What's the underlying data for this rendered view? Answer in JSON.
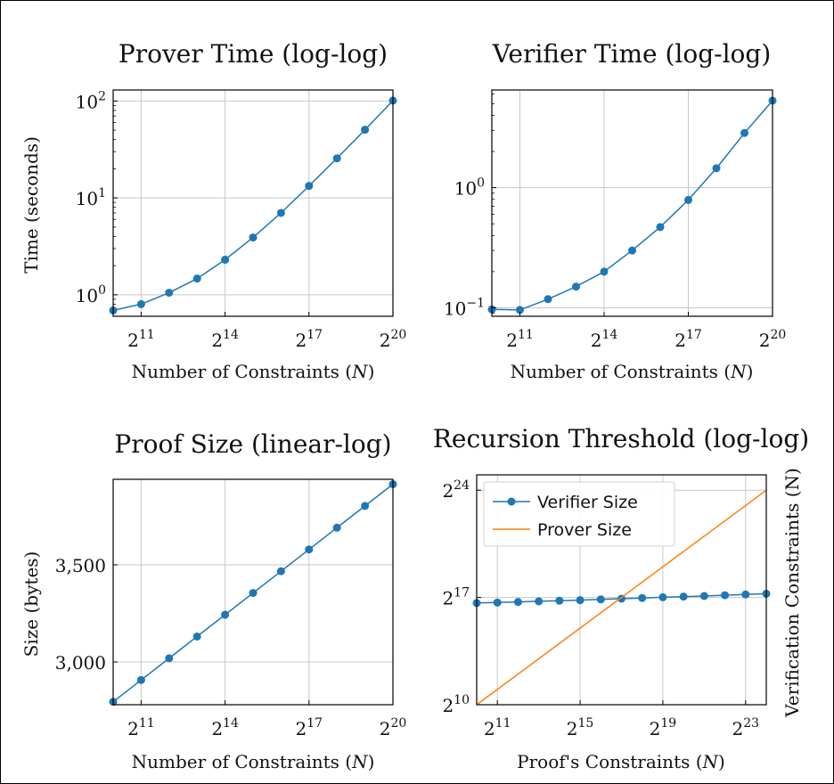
{
  "colors": {
    "series_blue": "#1f77b4",
    "series_orange": "#ff7f0e",
    "grid": "#c8c8c8",
    "frame": "#000000"
  },
  "chart_data": [
    {
      "id": "prover-time",
      "type": "line",
      "title": "Prover Time (log-log)",
      "xlabel": "Number of Constraints (N)",
      "ylabel": "Time (seconds)",
      "xscale": "log2",
      "yscale": "log10",
      "xlim": [
        1024,
        1048576
      ],
      "ylim": [
        0.6,
        130
      ],
      "xticks": [
        2048,
        16384,
        131072,
        1048576
      ],
      "xtick_labels": [
        "2^11",
        "2^14",
        "2^17",
        "2^20"
      ],
      "yticks": [
        1,
        10,
        100
      ],
      "ytick_labels": [
        "10^0",
        "10^1",
        "10^2"
      ],
      "grid": true,
      "series": [
        {
          "color": "#1f77b4",
          "markers": true,
          "x": [
            1024,
            2048,
            4096,
            8192,
            16384,
            32768,
            65536,
            131072,
            262144,
            524288,
            1048576
          ],
          "y": [
            0.69,
            0.8,
            1.05,
            1.47,
            2.3,
            3.9,
            7.0,
            13.3,
            25.6,
            50.5,
            101
          ]
        }
      ]
    },
    {
      "id": "verifier-time",
      "type": "line",
      "title": "Verifier Time (log-log)",
      "xlabel": "Number of Constraints (N)",
      "ylabel": "",
      "xscale": "log2",
      "yscale": "log10",
      "xlim": [
        1024,
        1048576
      ],
      "ylim": [
        0.085,
        6.5
      ],
      "xticks": [
        2048,
        16384,
        131072,
        1048576
      ],
      "xtick_labels": [
        "2^11",
        "2^14",
        "2^17",
        "2^20"
      ],
      "yticks": [
        0.1,
        1
      ],
      "ytick_labels": [
        "10^-1",
        "10^0"
      ],
      "grid": true,
      "series": [
        {
          "color": "#1f77b4",
          "markers": true,
          "x": [
            1024,
            2048,
            4096,
            8192,
            16384,
            32768,
            65536,
            131072,
            262144,
            524288,
            1048576
          ],
          "y": [
            0.097,
            0.096,
            0.118,
            0.15,
            0.2,
            0.3,
            0.47,
            0.79,
            1.45,
            2.85,
            5.3
          ]
        }
      ]
    },
    {
      "id": "proof-size",
      "type": "line",
      "title": "Proof Size (linear-log)",
      "xlabel": "Number of Constraints (N)",
      "ylabel": "Size (bytes)",
      "xscale": "log2",
      "yscale": "linear",
      "xlim": [
        1024,
        1048576
      ],
      "ylim": [
        2780,
        3940
      ],
      "xticks": [
        2048,
        16384,
        131072,
        1048576
      ],
      "xtick_labels": [
        "2^11",
        "2^14",
        "2^17",
        "2^20"
      ],
      "yticks": [
        3000,
        3500
      ],
      "ytick_labels": [
        "3,000",
        "3,500"
      ],
      "grid": true,
      "series": [
        {
          "color": "#1f77b4",
          "markers": true,
          "x": [
            1024,
            2048,
            4096,
            8192,
            16384,
            32768,
            65536,
            131072,
            262144,
            524288,
            1048576
          ],
          "y": [
            2795,
            2907,
            3019,
            3131,
            3243,
            3355,
            3467,
            3579,
            3691,
            3803,
            3915
          ]
        }
      ]
    },
    {
      "id": "recursion-threshold",
      "type": "line",
      "title": "Recursion Threshold (log-log)",
      "xlabel": "Proof's Constraints (N)",
      "ylabel": "Verification Constraints (N)",
      "xscale": "log2",
      "yscale": "log2",
      "xlim": [
        1024,
        16777216
      ],
      "ylim": [
        1024,
        33554432
      ],
      "xticks": [
        2048,
        32768,
        524288,
        8388608
      ],
      "xtick_labels": [
        "2^11",
        "2^15",
        "2^19",
        "2^23"
      ],
      "yticks": [
        1024,
        131072,
        16777216
      ],
      "ytick_labels": [
        "2^10",
        "2^17",
        "2^24"
      ],
      "grid": true,
      "legend": "top-left",
      "series": [
        {
          "name": "Verifier Size",
          "color": "#1f77b4",
          "markers": true,
          "x": [
            1024,
            2048,
            4096,
            8192,
            16384,
            32768,
            65536,
            131072,
            262144,
            524288,
            1048576,
            2097152,
            4194304,
            8388608,
            16777216
          ],
          "y": [
            102000,
            104000,
            107000,
            110000,
            113000,
            116000,
            120000,
            124000,
            128000,
            132000,
            136000,
            140000,
            145000,
            150000,
            155000
          ]
        },
        {
          "name": "Prover Size",
          "color": "#ff7f0e",
          "markers": false,
          "x": [
            1024,
            16777216
          ],
          "y": [
            1024,
            16777216
          ]
        }
      ]
    }
  ]
}
